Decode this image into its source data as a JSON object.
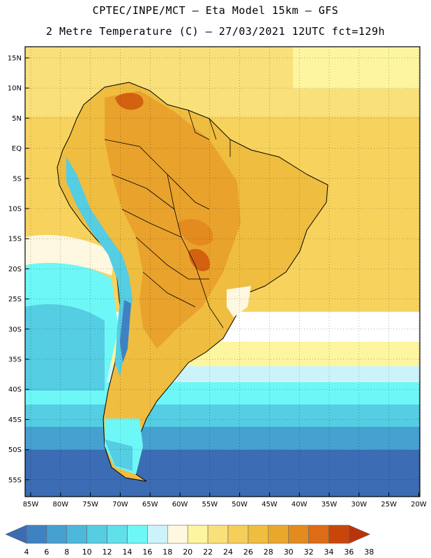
{
  "header": {
    "line1": "CPTEC/INPE/MCT –  Eta Model 15km – GFS",
    "line2": "2 Metre Temperature (C) – 27/03/2021 12UTC fct=129h"
  },
  "lat_labels": [
    "15N",
    "10N",
    "5N",
    "EQ",
    "5S",
    "10S",
    "15S",
    "20S",
    "25S",
    "30S",
    "35S",
    "40S",
    "45S",
    "50S",
    "55S"
  ],
  "lon_labels": [
    "85W",
    "80W",
    "75W",
    "70W",
    "65W",
    "60W",
    "55W",
    "50W",
    "45W",
    "40W",
    "35W",
    "30W",
    "25W",
    "20W"
  ],
  "colorbar": {
    "labels": [
      "4",
      "6",
      "8",
      "10",
      "12",
      "14",
      "16",
      "18",
      "20",
      "22",
      "24",
      "26",
      "28",
      "30",
      "32",
      "34",
      "36",
      "38"
    ],
    "colors": [
      "#3b6cb4",
      "#3f82c3",
      "#46a0d0",
      "#4db8db",
      "#55cde2",
      "#5fe0ea",
      "#6ef7f7",
      "#cdf3fa",
      "#fef8e0",
      "#fdf5a0",
      "#f9e07a",
      "#f5cf5a",
      "#efbd3f",
      "#e9a82c",
      "#e38b1e",
      "#dd6c14",
      "#c9460a",
      "#b8340a"
    ]
  },
  "colors": {
    "ocean_warm": "#f7d35e",
    "ocean_hot": "#f5c84a",
    "land_warm": "#efbd3f",
    "land_hot": "#e9a22c",
    "land_very_hot": "#d2620f",
    "cool_mid": "#6ef7f7",
    "cool": "#55cde2",
    "cold": "#3f82c3"
  }
}
